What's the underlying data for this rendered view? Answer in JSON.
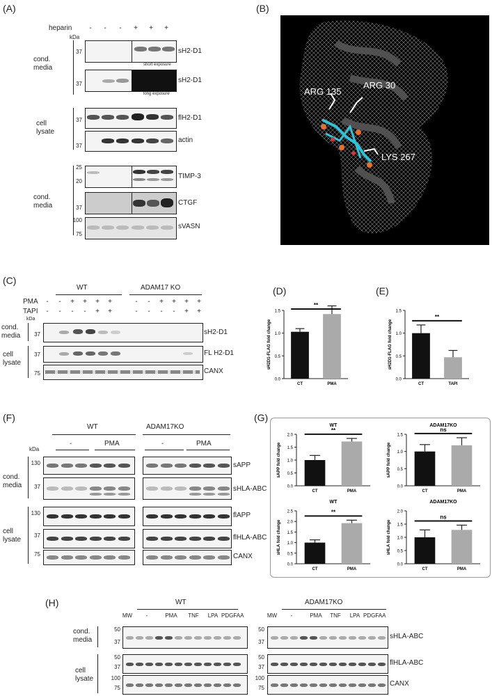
{
  "panelA": {
    "label": "(A)",
    "heparin_label": "heparin",
    "heparin_signs": [
      "-",
      "-",
      "-",
      "+",
      "+",
      "+"
    ],
    "kda": "kDa",
    "group_cond_media": "cond.\nmedia",
    "group_cell_lysate": "cell\nlysate",
    "group_cond_media2": "cond.\nmedia",
    "blots": [
      {
        "name": "sH2-D1",
        "ticks": [
          "37"
        ],
        "note": "short exposure"
      },
      {
        "name": "sH2-D1",
        "ticks": [
          "37"
        ],
        "note": "long exposure"
      },
      {
        "name": "flH2-D1",
        "ticks": [
          "37"
        ]
      },
      {
        "name": "actin",
        "ticks": [
          "37"
        ]
      },
      {
        "name": "TIMP-3",
        "ticks": [
          "25",
          "20"
        ]
      },
      {
        "name": "CTGF",
        "ticks": [
          "37"
        ]
      },
      {
        "name": "sVASN",
        "ticks": [
          "100",
          "75"
        ]
      }
    ]
  },
  "panelB": {
    "label": "(B)",
    "residues": [
      "ARG 135",
      "ARG 30",
      "LYS 267"
    ]
  },
  "panelC": {
    "label": "(C)",
    "wt": "WT",
    "ko": "ADAM17 KO",
    "pma": "PMA",
    "tapi": "TAPI",
    "pma_signs": [
      "-",
      "-",
      "+",
      "+",
      "+",
      "+",
      "-",
      "-",
      "+",
      "+",
      "+",
      "+"
    ],
    "tapi_signs": [
      "-",
      "-",
      "-",
      "-",
      "+",
      "+",
      "-",
      "-",
      "-",
      "-",
      "+",
      "+"
    ],
    "kda": "kDa",
    "group_cond_media": "cond.\nmedia",
    "group_cell_lysate": "cell\nlysate",
    "blots": [
      {
        "name": "sH2-D1",
        "ticks": [
          "37"
        ]
      },
      {
        "name": "FL H2-D1",
        "ticks": [
          "37"
        ]
      },
      {
        "name": "CANX",
        "ticks": [
          "75"
        ]
      }
    ]
  },
  "panelD": {
    "label": "(D)",
    "chart_data": {
      "type": "bar",
      "categories": [
        "CT",
        "PMA"
      ],
      "values": [
        1.03,
        1.42
      ],
      "errors": [
        0.07,
        0.18
      ],
      "ylabel": "sH2D1-FLAG fold change",
      "ylim": [
        0,
        1.5
      ],
      "yticks": [
        "0.0",
        "0.5",
        "1.0",
        "1.5"
      ],
      "significance": "**",
      "colors": [
        "#111111",
        "#aaaaaa"
      ]
    }
  },
  "panelE": {
    "label": "(E)",
    "chart_data": {
      "type": "bar",
      "categories": [
        "CT",
        "TAPI"
      ],
      "values": [
        1.0,
        0.47
      ],
      "errors": [
        0.18,
        0.15
      ],
      "ylabel": "sH2D1-FLAG fold change",
      "ylim": [
        0,
        1.5
      ],
      "yticks": [
        "0.0",
        "0.5",
        "1.0",
        "1.5"
      ],
      "significance": "**",
      "colors": [
        "#111111",
        "#aaaaaa"
      ]
    }
  },
  "panelF": {
    "label": "(F)",
    "wt": "WT",
    "ko": "ADAM17KO",
    "minus": "-",
    "pma": "PMA",
    "kda": "kDa",
    "group_cond_media": "cond.\nmedia",
    "group_cell_lysate": "cell\nlysate",
    "blots": [
      {
        "name": "sAPP",
        "ticks": [
          "130"
        ]
      },
      {
        "name": "sHLA-ABC",
        "ticks": [
          "37"
        ]
      },
      {
        "name": "flAPP",
        "ticks": [
          "130"
        ]
      },
      {
        "name": "flHLA-ABC",
        "ticks": [
          "37"
        ]
      },
      {
        "name": "CANX",
        "ticks": [
          "75"
        ]
      }
    ]
  },
  "panelG": {
    "label": "(G)",
    "chart_data": [
      {
        "type": "bar",
        "title": "WT",
        "categories": [
          "CT",
          "PMA"
        ],
        "values": [
          1.0,
          1.72
        ],
        "errors": [
          0.18,
          0.12
        ],
        "ylabel": "sAPP fold change",
        "ylim": [
          0,
          2.0
        ],
        "yticks": [
          "0.0",
          "0.5",
          "1.0",
          "1.5",
          "2.0"
        ],
        "significance": "**",
        "colors": [
          "#111111",
          "#aaaaaa"
        ]
      },
      {
        "type": "bar",
        "title": "ADAM17KO",
        "categories": [
          "CT",
          "PMA"
        ],
        "values": [
          1.0,
          1.18
        ],
        "errors": [
          0.2,
          0.22
        ],
        "ylabel": "sAPP fold change",
        "ylim": [
          0,
          1.5
        ],
        "yticks": [
          "0.0",
          "0.5",
          "1.0",
          "1.5"
        ],
        "significance": "ns",
        "colors": [
          "#111111",
          "#aaaaaa"
        ]
      },
      {
        "type": "bar",
        "title": "WT",
        "categories": [
          "CT",
          "PMA"
        ],
        "values": [
          1.0,
          1.92
        ],
        "errors": [
          0.13,
          0.14
        ],
        "ylabel": "sHLA fold change",
        "ylim": [
          0,
          2.5
        ],
        "yticks": [
          "0.0",
          "0.5",
          "1.0",
          "1.5",
          "2.0",
          "2.5"
        ],
        "significance": "**",
        "colors": [
          "#111111",
          "#aaaaaa"
        ]
      },
      {
        "type": "bar",
        "title": "ADAM17KO",
        "categories": [
          "CT",
          "PMA"
        ],
        "values": [
          1.0,
          1.28
        ],
        "errors": [
          0.28,
          0.18
        ],
        "ylabel": "sHLA fold change",
        "ylim": [
          0,
          2.0
        ],
        "yticks": [
          "0.0",
          "0.5",
          "1.0",
          "1.5",
          "2.0"
        ],
        "significance": "ns",
        "colors": [
          "#111111",
          "#aaaaaa"
        ]
      }
    ]
  },
  "panelH": {
    "label": "(H)",
    "wt": "WT",
    "ko": "ADAM17KO",
    "lanes": [
      "MW",
      "-",
      "PMA",
      "TNF",
      "LPA",
      "PDGFAA"
    ],
    "group_cond_media": "cond.\nmedia",
    "group_cell_lysate": "cell\nlysate",
    "blots": [
      {
        "name": "sHLA-ABC",
        "ticks": [
          "50",
          "37"
        ]
      },
      {
        "name": "flHLA-ABC",
        "ticks": [
          "50",
          "37"
        ]
      },
      {
        "name": "CANX",
        "ticks": [
          "100",
          "75"
        ]
      }
    ]
  }
}
